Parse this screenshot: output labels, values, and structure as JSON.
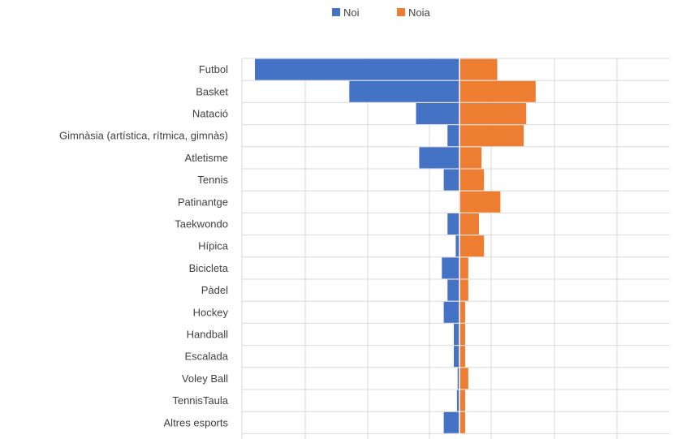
{
  "chart_data": {
    "type": "bar",
    "orientation": "horizontal-diverging",
    "categories": [
      "Futbol",
      "Basket",
      "Natació",
      "Gimnàsia (artística, rítmica, gimnàs)",
      "Atletisme",
      "Tennis",
      "Patinantge",
      "Taekwondo",
      "Hípica",
      "Bicicleta",
      "Pàdel",
      "Hockey",
      "Handball",
      "Escalada",
      "Voley Ball",
      "TennisTaula",
      "Altres esports"
    ],
    "series": [
      {
        "name": "Noi",
        "color": "#4472C4",
        "values": [
          32.5,
          17.5,
          6.9,
          1.9,
          6.4,
          2.5,
          0.1,
          1.9,
          0.6,
          2.8,
          1.9,
          2.5,
          0.9,
          0.9,
          0.3,
          0.4,
          2.5
        ]
      },
      {
        "name": "Noia",
        "color": "#ED7D31",
        "values": [
          6.0,
          12.1,
          10.6,
          10.2,
          3.5,
          3.9,
          6.5,
          3.1,
          3.9,
          1.4,
          1.4,
          0.9,
          0.9,
          0.9,
          1.4,
          0.9,
          0.9
        ]
      }
    ],
    "title": "",
    "xlabel": "",
    "ylabel": "",
    "xlim": [
      -32.5,
      32.5
    ],
    "grid": true,
    "legend_position": "top-center"
  }
}
